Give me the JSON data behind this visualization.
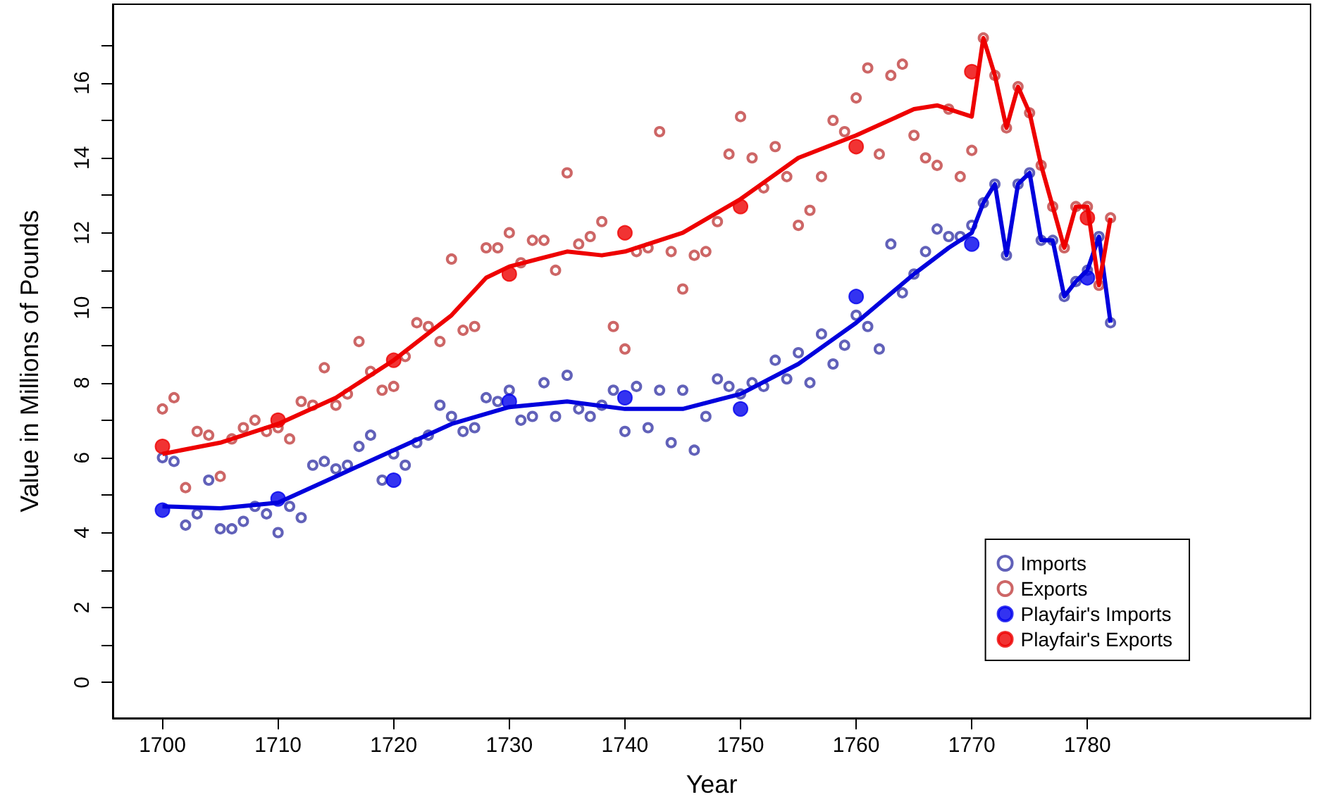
{
  "chart_data": {
    "type": "scatter",
    "xlabel": "Year",
    "ylabel": "Value in Millions of Pounds",
    "xlim": [
      1695.7,
      1799.3
    ],
    "xticks": [
      1700,
      1710,
      1720,
      1730,
      1740,
      1750,
      1760,
      1770,
      1780
    ],
    "ylim": [
      -0.95,
      18.1
    ],
    "yticks": [
      0,
      {
        "value": 1,
        "label": null
      },
      2,
      {
        "value": 3,
        "label": null
      },
      4,
      {
        "value": 5,
        "label": null
      },
      6,
      {
        "value": 7,
        "label": null
      },
      8,
      {
        "value": 9,
        "label": null
      },
      10,
      {
        "value": 11,
        "label": null
      },
      12,
      {
        "value": 13,
        "label": null
      },
      14,
      {
        "value": 15,
        "label": null
      },
      16,
      {
        "value": 17,
        "label": null
      }
    ],
    "grid": false,
    "legend": "bottom right",
    "marker": "circle",
    "series": [
      {
        "name": "Imports",
        "color": "#3a3aa8",
        "x": [
          1700,
          1701,
          1702,
          1703,
          1704,
          1705,
          1706,
          1707,
          1708,
          1709,
          1710,
          1711,
          1712,
          1713,
          1714,
          1715,
          1716,
          1717,
          1718,
          1719,
          1720,
          1721,
          1722,
          1723,
          1724,
          1725,
          1726,
          1727,
          1728,
          1729,
          1730,
          1731,
          1732,
          1733,
          1734,
          1735,
          1736,
          1737,
          1738,
          1739,
          1740,
          1741,
          1742,
          1743,
          1744,
          1745,
          1746,
          1747,
          1748,
          1749,
          1750,
          1751,
          1752,
          1753,
          1754,
          1755,
          1756,
          1757,
          1758,
          1759,
          1760,
          1761,
          1762,
          1763,
          1764,
          1765,
          1766,
          1767,
          1768,
          1769,
          1770,
          1771,
          1772,
          1773,
          1774,
          1775,
          1776,
          1777,
          1778,
          1779,
          1780,
          1781,
          1782
        ],
        "values": [
          6.0,
          5.9,
          4.2,
          4.5,
          5.4,
          4.1,
          4.1,
          4.3,
          4.7,
          4.5,
          4.0,
          4.7,
          4.4,
          5.8,
          5.9,
          5.7,
          5.8,
          6.3,
          6.6,
          5.4,
          6.1,
          5.8,
          6.4,
          6.6,
          7.4,
          7.1,
          6.7,
          6.8,
          7.6,
          7.5,
          7.8,
          7.0,
          7.1,
          8.0,
          7.1,
          8.2,
          7.3,
          7.1,
          7.4,
          7.8,
          6.7,
          7.9,
          6.8,
          7.8,
          6.4,
          7.8,
          6.2,
          7.1,
          8.1,
          7.9,
          7.7,
          8.0,
          7.9,
          8.6,
          8.1,
          8.8,
          8.0,
          9.3,
          8.5,
          9.0,
          9.8,
          9.5,
          8.9,
          11.7,
          10.4,
          10.9,
          11.5,
          12.1,
          11.9,
          11.9,
          12.2,
          12.8,
          13.3,
          11.4,
          13.3,
          13.6,
          11.8,
          11.8,
          10.3,
          10.7,
          11.0,
          11.9,
          9.6
        ]
      },
      {
        "name": "Exports",
        "color": "#c04040",
        "x": [
          1700,
          1701,
          1702,
          1703,
          1704,
          1705,
          1706,
          1707,
          1708,
          1709,
          1710,
          1711,
          1712,
          1713,
          1714,
          1715,
          1716,
          1717,
          1718,
          1719,
          1720,
          1721,
          1722,
          1723,
          1724,
          1725,
          1726,
          1727,
          1728,
          1729,
          1730,
          1731,
          1732,
          1733,
          1734,
          1735,
          1736,
          1737,
          1738,
          1739,
          1740,
          1741,
          1742,
          1743,
          1744,
          1745,
          1746,
          1747,
          1748,
          1749,
          1750,
          1751,
          1752,
          1753,
          1754,
          1755,
          1756,
          1757,
          1758,
          1759,
          1760,
          1761,
          1762,
          1763,
          1764,
          1765,
          1766,
          1767,
          1768,
          1769,
          1770,
          1771,
          1772,
          1773,
          1774,
          1775,
          1776,
          1777,
          1778,
          1779,
          1780,
          1781,
          1782
        ],
        "values": [
          7.3,
          7.6,
          5.2,
          6.7,
          6.6,
          5.5,
          6.5,
          6.8,
          7.0,
          6.7,
          6.8,
          6.5,
          7.5,
          7.4,
          8.4,
          7.4,
          7.7,
          9.1,
          8.3,
          7.8,
          7.9,
          8.7,
          9.6,
          9.5,
          9.1,
          11.3,
          9.4,
          9.5,
          11.6,
          11.6,
          12.0,
          11.2,
          11.8,
          11.8,
          11.0,
          13.6,
          11.7,
          11.9,
          12.3,
          9.5,
          8.9,
          11.5,
          11.6,
          14.7,
          11.5,
          10.5,
          11.4,
          11.5,
          12.3,
          14.1,
          15.1,
          14.0,
          13.2,
          14.3,
          13.5,
          12.2,
          12.6,
          13.5,
          15.0,
          14.7,
          15.6,
          16.4,
          14.1,
          16.2,
          16.5,
          14.6,
          14.0,
          13.8,
          15.3,
          13.5,
          14.2,
          17.2,
          16.2,
          14.8,
          15.9,
          15.2,
          13.8,
          12.7,
          11.6,
          12.7,
          12.7,
          10.6,
          12.4
        ]
      },
      {
        "type": "line",
        "color": "#0000dd",
        "marker": "none",
        "x": [
          1700,
          1705,
          1710,
          1715,
          1720,
          1725,
          1730,
          1735,
          1740,
          1745,
          1750,
          1755,
          1760,
          1765,
          1768,
          1770,
          1771,
          1772,
          1773,
          1774,
          1775,
          1776,
          1777,
          1778,
          1779,
          1780,
          1781,
          1782
        ],
        "values": [
          4.7,
          4.65,
          4.8,
          5.5,
          6.2,
          6.9,
          7.35,
          7.5,
          7.3,
          7.3,
          7.7,
          8.5,
          9.6,
          10.9,
          11.6,
          12.0,
          12.8,
          13.3,
          11.4,
          13.3,
          13.6,
          11.8,
          11.8,
          10.3,
          10.7,
          11.0,
          11.9,
          9.6
        ]
      },
      {
        "type": "line",
        "color": "#ee0000",
        "marker": "none",
        "x": [
          1700,
          1705,
          1710,
          1715,
          1720,
          1725,
          1728,
          1730,
          1735,
          1738,
          1740,
          1745,
          1750,
          1755,
          1760,
          1765,
          1767,
          1770,
          1771,
          1772,
          1773,
          1774,
          1775,
          1776,
          1777,
          1778,
          1779,
          1780,
          1781,
          1782
        ],
        "values": [
          6.1,
          6.4,
          6.9,
          7.6,
          8.6,
          9.8,
          10.8,
          11.1,
          11.5,
          11.4,
          11.5,
          12.0,
          12.9,
          14.0,
          14.6,
          15.3,
          15.4,
          15.1,
          17.2,
          16.2,
          14.8,
          15.9,
          15.2,
          13.8,
          12.7,
          11.6,
          12.7,
          12.7,
          10.6,
          12.4
        ]
      },
      {
        "name": "Playfair's Imports",
        "marker": "circle",
        "color": "#0000ee",
        "x": [
          1700,
          1710,
          1720,
          1730,
          1740,
          1750,
          1760,
          1770,
          1780
        ],
        "values": [
          4.6,
          4.9,
          5.4,
          7.5,
          7.6,
          7.3,
          10.3,
          11.7,
          10.8
        ]
      },
      {
        "name": "Playfair's Exports",
        "marker": "circle",
        "color": "#ee0000",
        "x": [
          1700,
          1710,
          1720,
          1730,
          1740,
          1750,
          1760,
          1770,
          1780
        ],
        "values": [
          6.3,
          7.0,
          8.6,
          10.9,
          12.0,
          12.7,
          14.3,
          16.3,
          12.4
        ]
      }
    ]
  }
}
